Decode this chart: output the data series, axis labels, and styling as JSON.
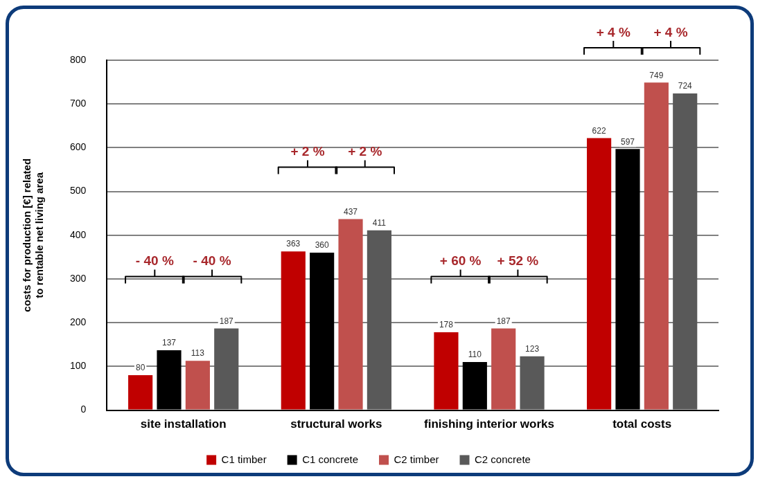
{
  "chart_data": {
    "type": "bar",
    "ylabel": "costs for production [€] related\nto rentable net living area",
    "categories": [
      "site installation",
      "structural works",
      "finishing interior works",
      "total costs"
    ],
    "series": [
      {
        "name": "C1 timber",
        "color": "#c00000",
        "values": [
          80,
          363,
          178,
          622
        ]
      },
      {
        "name": "C1 concrete",
        "color": "#000000",
        "values": [
          137,
          360,
          110,
          597
        ]
      },
      {
        "name": "C2 timber",
        "color": "#c0504d",
        "values": [
          113,
          437,
          187,
          749
        ]
      },
      {
        "name": "C2 concrete",
        "color": "#595959",
        "values": [
          187,
          411,
          123,
          724
        ]
      }
    ],
    "ylim": [
      0,
      800
    ],
    "yticks": [
      0,
      100,
      200,
      300,
      400,
      500,
      600,
      700,
      800
    ],
    "grid": "y",
    "legend": "bottom",
    "data_labels": true,
    "annotations": [
      "- 40 %",
      "- 40 %",
      "+ 2 %",
      "+ 2 %",
      "+ 60 %",
      "+ 52 %",
      "+ 4 %",
      "+ 4 %"
    ]
  }
}
